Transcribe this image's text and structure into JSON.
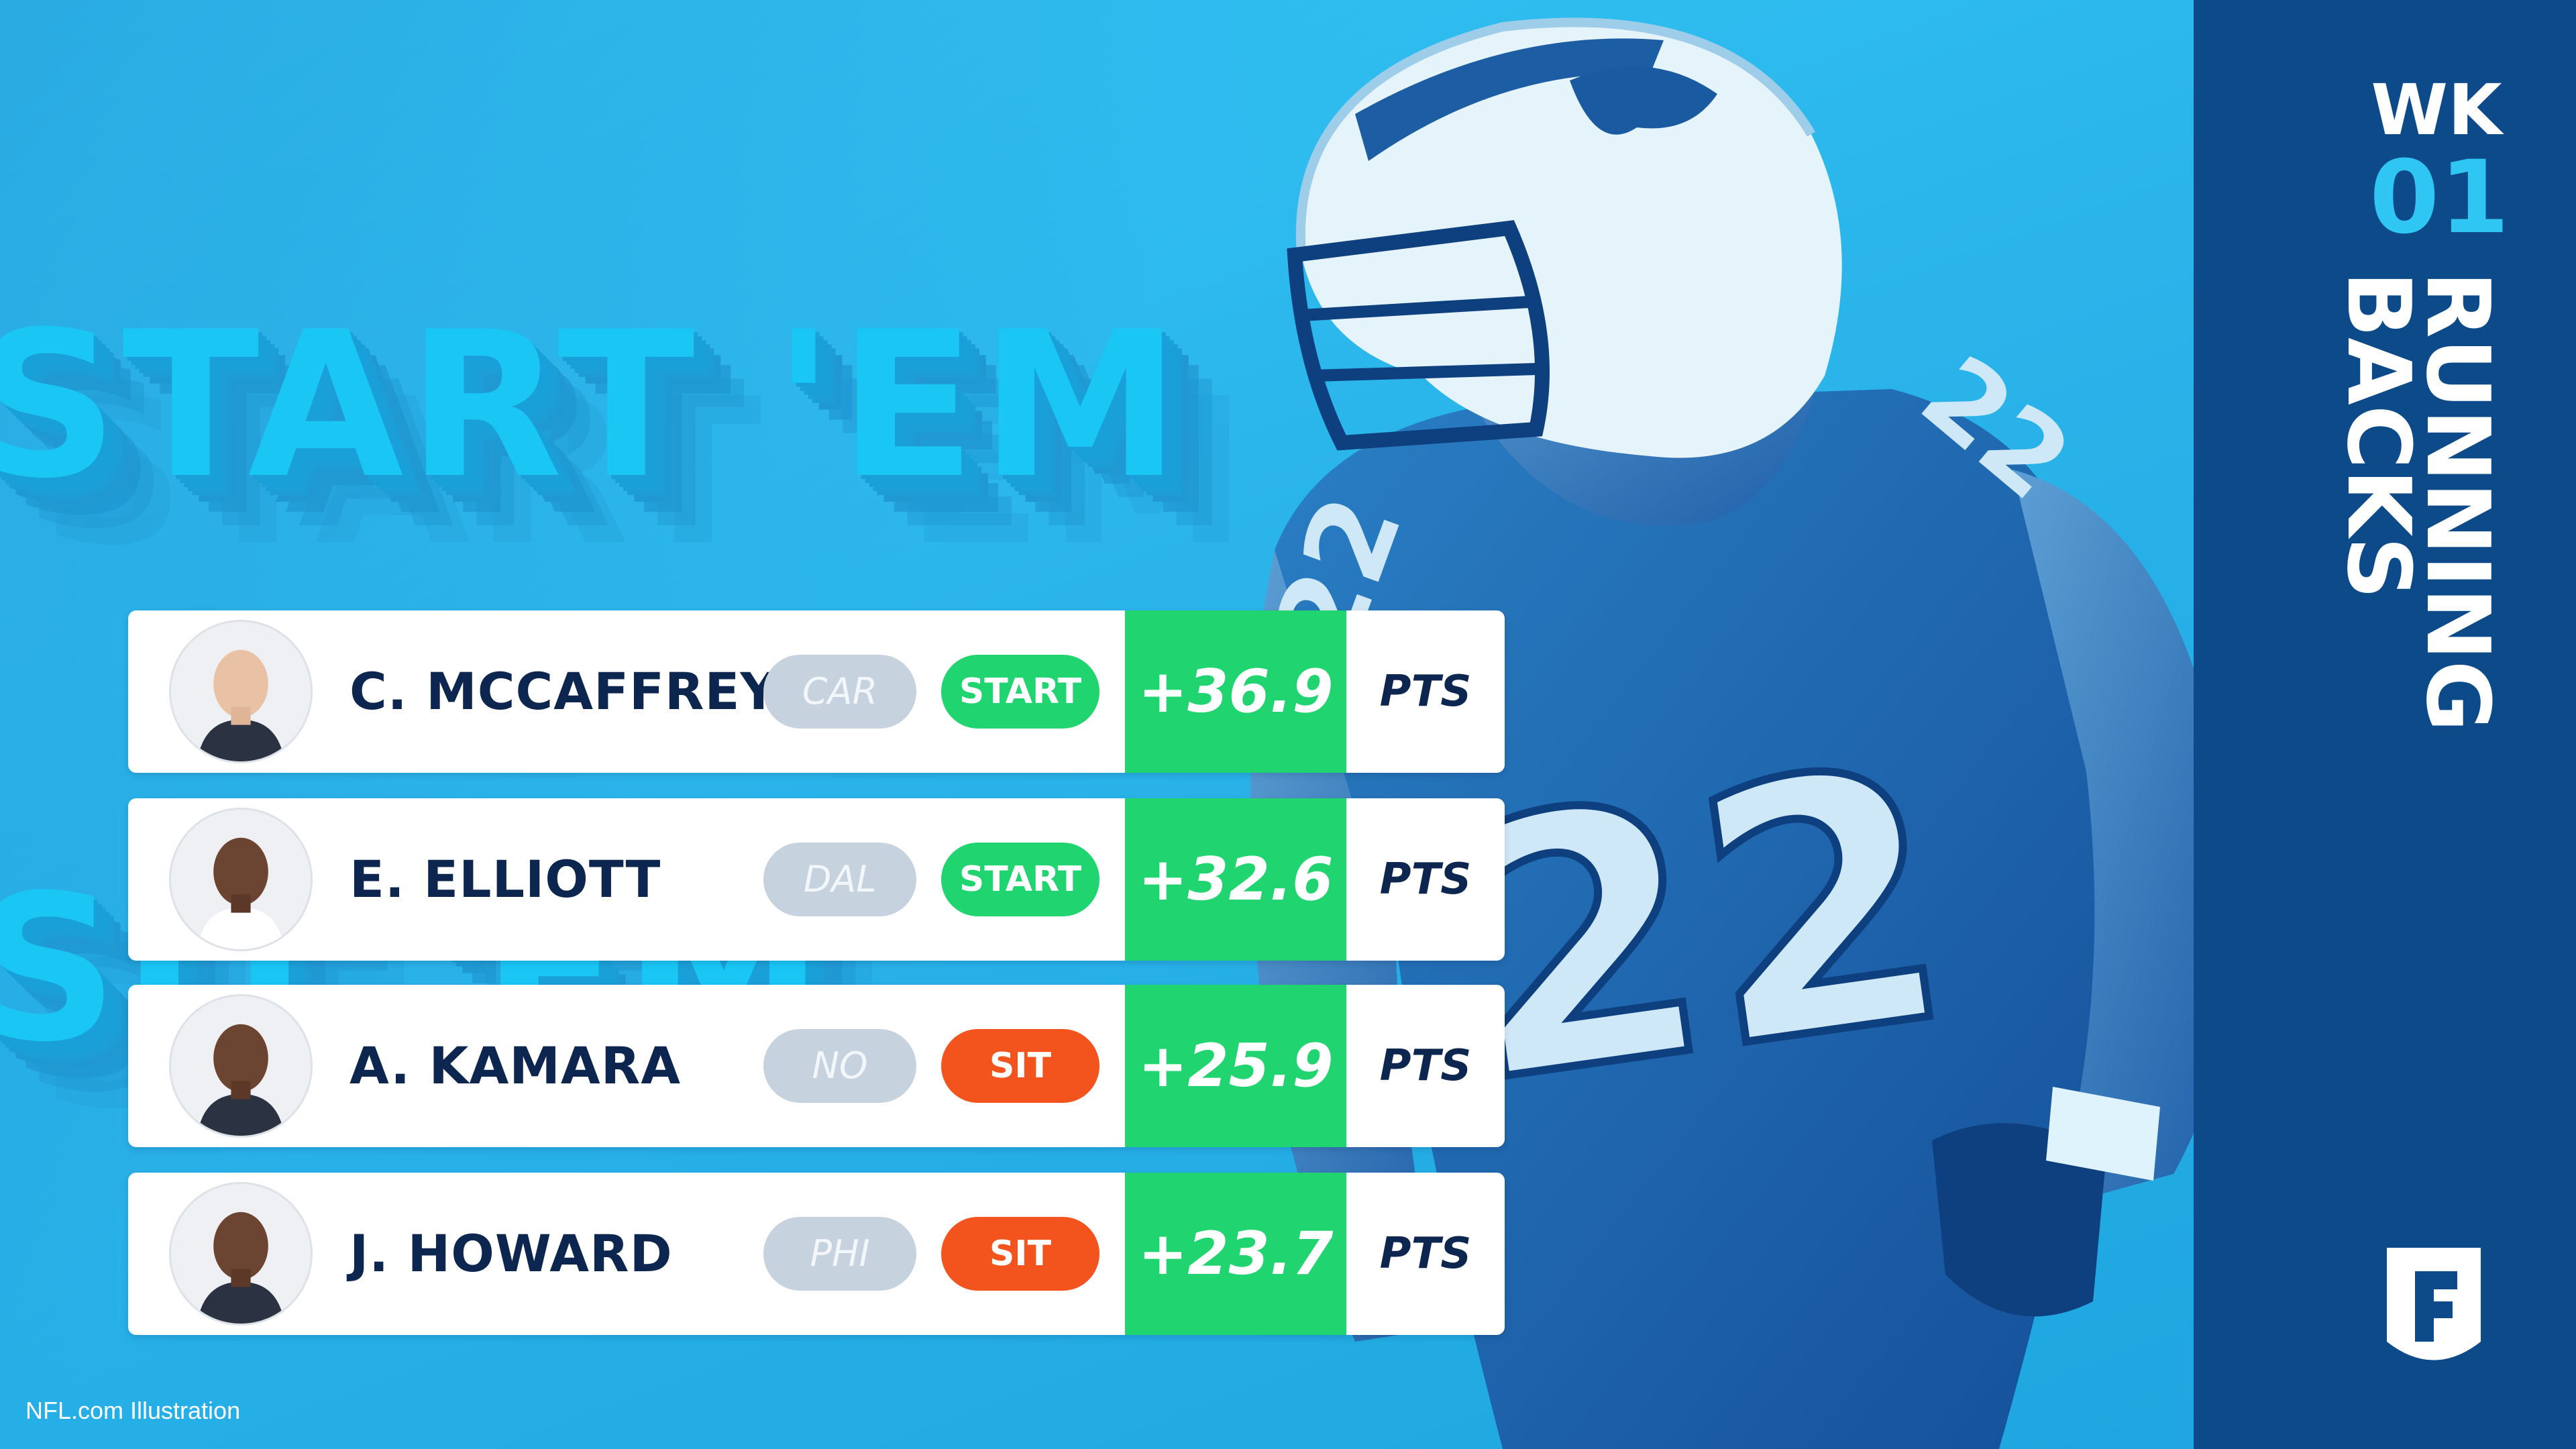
{
  "headline": {
    "line1": "START 'EM",
    "line2": "SIT 'EM"
  },
  "week": {
    "label": "WK",
    "number": "01"
  },
  "position": {
    "line1": "RUNNING",
    "line2": "BACKS"
  },
  "credit": "NFL.com Illustration",
  "colors": {
    "start": "#20d46f",
    "sit": "#f3541e",
    "panel": "#0c4a8a",
    "background": "#36bff0"
  },
  "players": [
    {
      "name": "C. MCCAFFREY",
      "team": "CAR",
      "verdict": "START",
      "points": "+36.9",
      "unit": "PTS"
    },
    {
      "name": "E. ELLIOTT",
      "team": "DAL",
      "verdict": "START",
      "points": "+32.6",
      "unit": "PTS"
    },
    {
      "name": "A. KAMARA",
      "team": "NO",
      "verdict": "SIT",
      "points": "+25.9",
      "unit": "PTS"
    },
    {
      "name": "J. HOWARD",
      "team": "PHI",
      "verdict": "SIT",
      "points": "+23.7",
      "unit": "PTS"
    }
  ],
  "icons": {
    "logo": "fantasy-f-shield-icon",
    "avatar": "player-headshot-icon"
  }
}
